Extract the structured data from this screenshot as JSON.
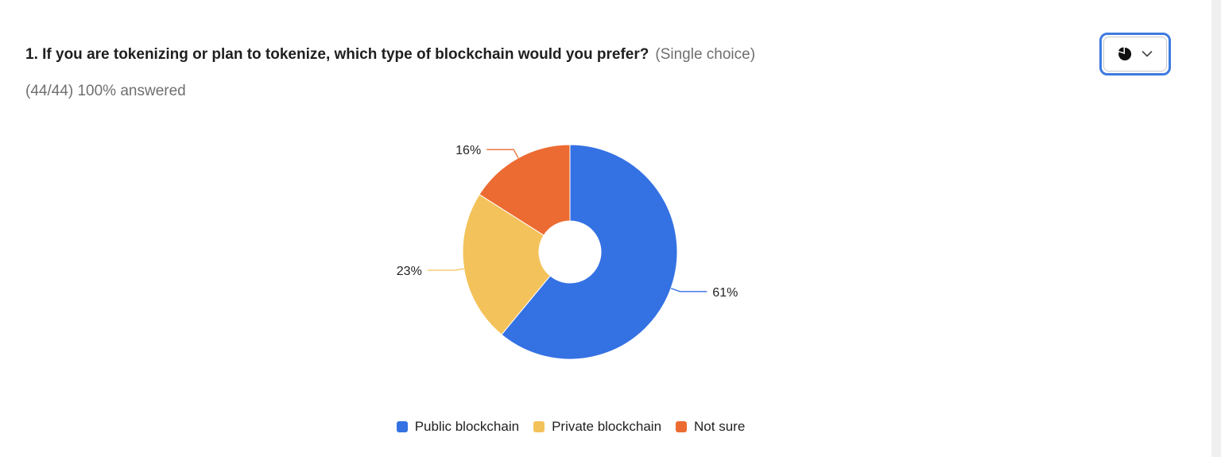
{
  "question": {
    "title": "1. If you are tokenizing or plan to tokenize, which type of blockchain would you prefer?",
    "type_label": "(Single choice)",
    "answered": "(44/44) 100% answered"
  },
  "chart_type_button": {
    "icon": "pie-chart-icon",
    "dropdown_icon": "chevron-down-icon"
  },
  "chart_data": {
    "type": "pie",
    "donut": true,
    "categories": [
      "Public blockchain",
      "Private blockchain",
      "Not sure"
    ],
    "values": [
      61,
      23,
      16
    ],
    "labels": [
      "61%",
      "23%",
      "16%"
    ],
    "colors": [
      "#3471e3",
      "#f4c25a",
      "#ec6b32"
    ],
    "legend_position": "bottom",
    "title": "",
    "xlabel": "",
    "ylabel": ""
  }
}
